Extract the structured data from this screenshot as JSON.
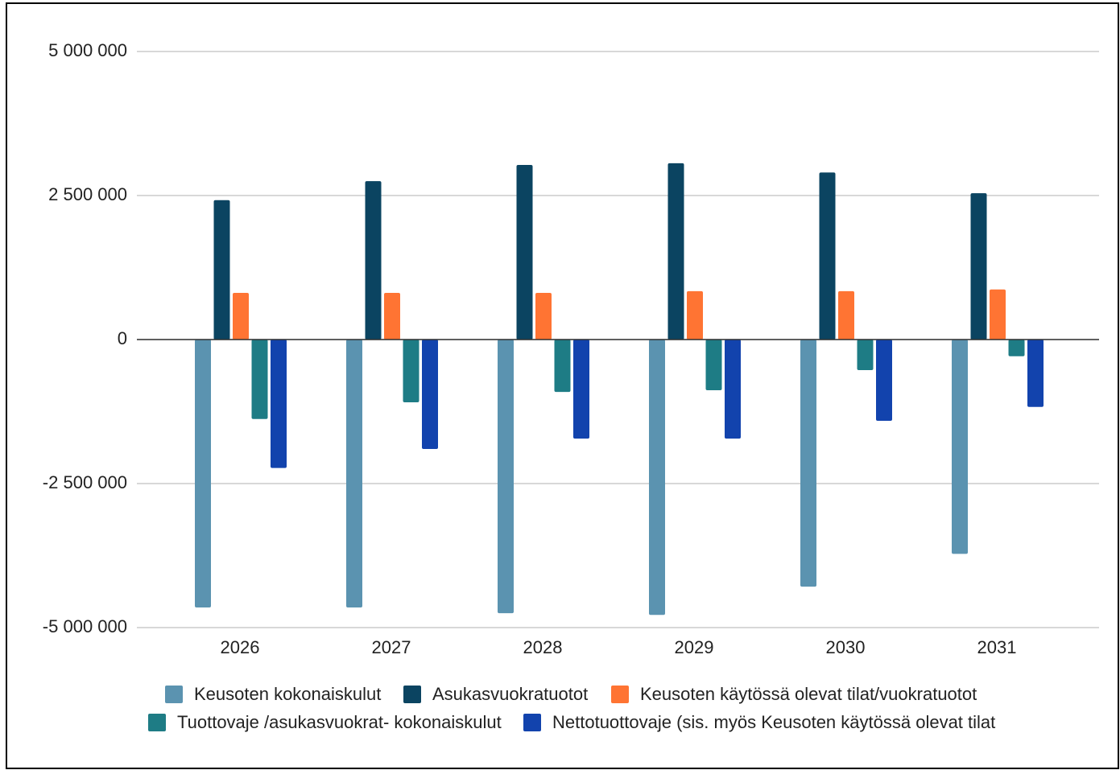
{
  "chart_data": {
    "type": "bar",
    "categories": [
      "2026",
      "2027",
      "2028",
      "2029",
      "2030",
      "2031"
    ],
    "series": [
      {
        "name": "Keusoten kokonaiskulut",
        "color": "#5b93b0",
        "values": [
          -4650000,
          -4650000,
          -4750000,
          -4780000,
          -4290000,
          -3720000
        ]
      },
      {
        "name": "Asukasvuokratuotot",
        "color": "#0b4461",
        "values": [
          2420000,
          2750000,
          3030000,
          3060000,
          2900000,
          2540000
        ]
      },
      {
        "name": "Keusoten käytössä olevat tilat/vuokratuotot",
        "color": "#ff7433",
        "values": [
          810000,
          810000,
          810000,
          840000,
          840000,
          870000
        ]
      },
      {
        "name": "Tuottovaje /asukasvuokrat- kokonaiskulut",
        "color": "#1e7c85",
        "values": [
          -1380000,
          -1090000,
          -910000,
          -880000,
          -530000,
          -290000
        ]
      },
      {
        "name": "Nettotuottovaje (sis. myös Keusoten käytössä olevat tilat",
        "color": "#1243ad",
        "values": [
          -2230000,
          -1900000,
          -1720000,
          -1720000,
          -1410000,
          -1170000
        ]
      }
    ],
    "ylim": [
      -5000000,
      5000000
    ],
    "yticks": [
      {
        "value": -5000000,
        "label": "-5 000 000"
      },
      {
        "value": -2500000,
        "label": "-2 500 000"
      },
      0,
      {
        "value": 2500000,
        "label": "2 500 000"
      },
      {
        "value": 5000000,
        "label": "5 000 000"
      }
    ],
    "grid": true,
    "legend": "bottom"
  }
}
